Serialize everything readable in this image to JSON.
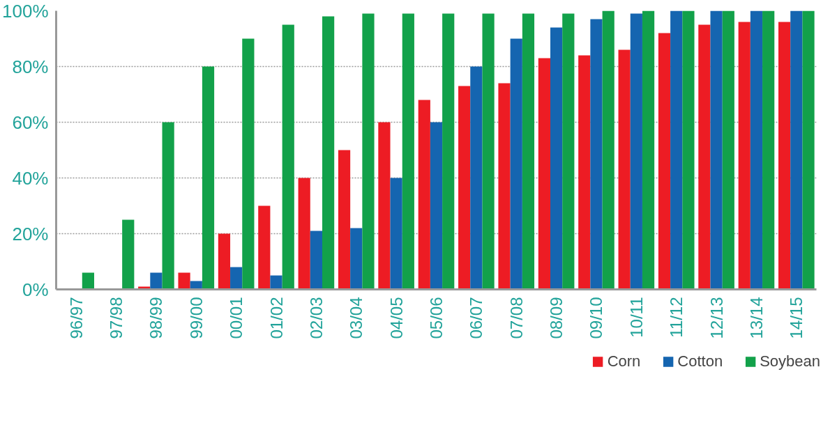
{
  "chart_data": {
    "type": "bar",
    "categories": [
      "96/97",
      "97/98",
      "98/99",
      "99/00",
      "00/01",
      "01/02",
      "02/03",
      "03/04",
      "04/05",
      "05/06",
      "06/07",
      "07/08",
      "08/09",
      "09/10",
      "10/11",
      "11/12",
      "12/13",
      "13/14",
      "14/15"
    ],
    "series": [
      {
        "name": "Corn",
        "color": "#ed1c24",
        "values": [
          0,
          0,
          1,
          6,
          20,
          30,
          40,
          50,
          60,
          68,
          73,
          74,
          83,
          84,
          86,
          92,
          95,
          96,
          96
        ]
      },
      {
        "name": "Cotton",
        "color": "#1565b0",
        "values": [
          0,
          0,
          6,
          3,
          8,
          5,
          21,
          22,
          40,
          60,
          80,
          90,
          94,
          97,
          99,
          100,
          100,
          100,
          100
        ]
      },
      {
        "name": "Soybean",
        "color": "#12a14a",
        "values": [
          6,
          25,
          60,
          80,
          90,
          95,
          98,
          99,
          99,
          99,
          99,
          99,
          99,
          100,
          100,
          100,
          100,
          100,
          100
        ]
      }
    ],
    "ylim": [
      0,
      100
    ],
    "yticks": [
      {
        "value": 0,
        "label": "0%"
      },
      {
        "value": 20,
        "label": "20%"
      },
      {
        "value": 40,
        "label": "40%"
      },
      {
        "value": 60,
        "label": "60%"
      },
      {
        "value": 80,
        "label": "80%"
      },
      {
        "value": 100,
        "label": "100%"
      }
    ],
    "grid": "y",
    "legend": "bottom right"
  }
}
